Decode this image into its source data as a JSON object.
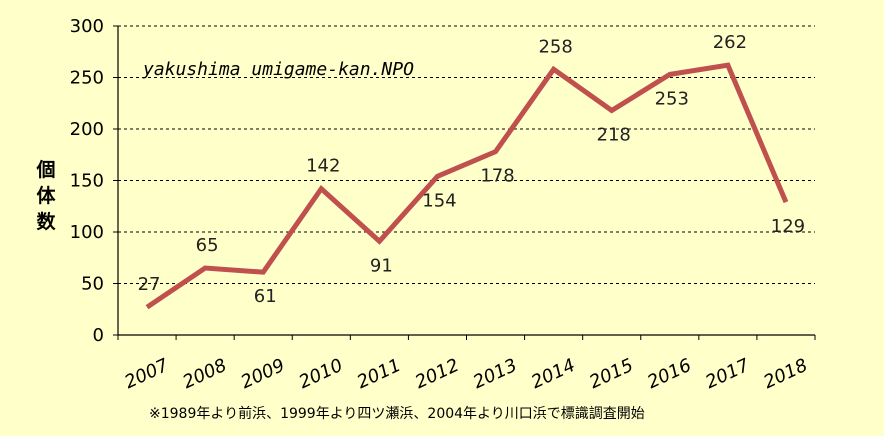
{
  "chart_data": {
    "type": "line",
    "categories": [
      "2007",
      "2008",
      "2009",
      "2010",
      "2011",
      "2012",
      "2013",
      "2014",
      "2015",
      "2016",
      "2017",
      "2018"
    ],
    "series": [
      {
        "values": [
          27,
          65,
          61,
          142,
          91,
          154,
          178,
          258,
          218,
          253,
          262,
          129
        ]
      }
    ],
    "ylabel": "個体数",
    "xlabel": "",
    "ylim": [
      0,
      300
    ],
    "yticks": [
      0,
      50,
      100,
      150,
      200,
      250,
      300
    ],
    "grid": "horizontal dashed",
    "watermark": "yakushima umigame-kan.NPO",
    "footnote": "※1989年より前浜、1999年より四ツ瀬浜、2004年より川口浜で標識調査開始",
    "colors": {
      "background": "#FFFFC9",
      "line": "#C0504D",
      "axis": "#000000"
    }
  }
}
